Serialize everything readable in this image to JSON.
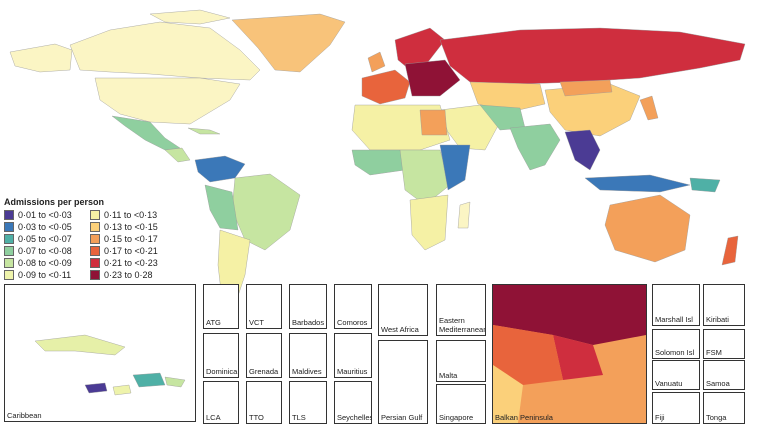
{
  "legend": {
    "title": "Admissions per person",
    "items": [
      {
        "label": "0·01 to <0·03",
        "color": "#4b3b94"
      },
      {
        "label": "0·11 to <0·13",
        "color": "#f5f1a5"
      },
      {
        "label": "0·03 to <0·05",
        "color": "#3b78b8"
      },
      {
        "label": "0·13 to <0·15",
        "color": "#fbd07a"
      },
      {
        "label": "0·05 to <0·07",
        "color": "#4fb0a6"
      },
      {
        "label": "0·15 to <0·17",
        "color": "#f3a05a"
      },
      {
        "label": "0·07 to <0·08",
        "color": "#8fcf9f"
      },
      {
        "label": "0·17 to <0·21",
        "color": "#e8643c"
      },
      {
        "label": "0·08 to <0·09",
        "color": "#c6e5a1"
      },
      {
        "label": "0·21 to <0·23",
        "color": "#cf2e3e"
      },
      {
        "label": "0·09 to <0·11",
        "color": "#eef3ab"
      },
      {
        "label": "0·23 to 0·28",
        "color": "#8f1236"
      }
    ]
  },
  "insets": {
    "caribbean": "Caribbean",
    "atg": "ATG",
    "vct": "VCT",
    "barbados": "Barbados",
    "comoros": "Comoros",
    "dominica": "Dominica",
    "grenada": "Grenada",
    "maldives": "Maldives",
    "mauritius": "Mauritius",
    "lca": "LCA",
    "tto": "TTO",
    "tls": "TLS",
    "seychelles": "Seychelles",
    "west_africa": "West Africa",
    "eastern_med": "Eastern Mediterranean",
    "persian_gulf": "Persian Gulf",
    "malta": "Malta",
    "singapore": "Singapore",
    "balkan": "Balkan Peninsula",
    "marshall": "Marshall Isl",
    "kiribati": "Kiribati",
    "solomon": "Solomon Isl",
    "fsm": "FSM",
    "vanuatu": "Vanuatu",
    "samoa": "Samoa",
    "fiji": "Fiji",
    "tonga": "Tonga"
  }
}
